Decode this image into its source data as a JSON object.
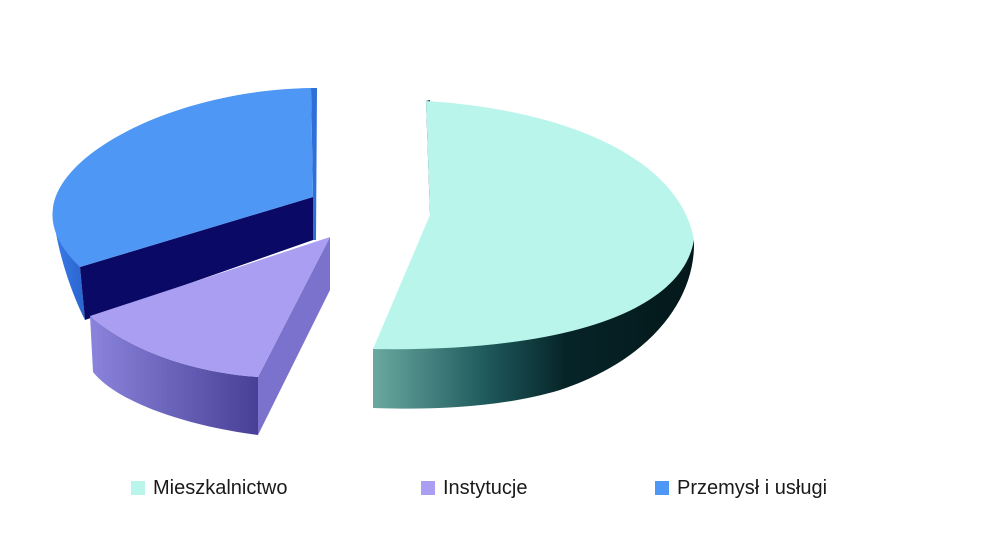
{
  "chart_data": {
    "type": "pie",
    "style": "3d-exploded",
    "legend_position": "bottom",
    "slices": [
      {
        "label": "Mieszkalnictwo",
        "value": 53,
        "color": "#b9f5eb",
        "side_color": "#0e3a3c"
      },
      {
        "label": "Instytucje",
        "value": 13,
        "color": "#a99ef2",
        "side_color": "#5a53a8"
      },
      {
        "label": "Przemysł i usługi",
        "value": 34,
        "color": "#4f97f5",
        "side_color": "#0a0a66"
      }
    ]
  }
}
